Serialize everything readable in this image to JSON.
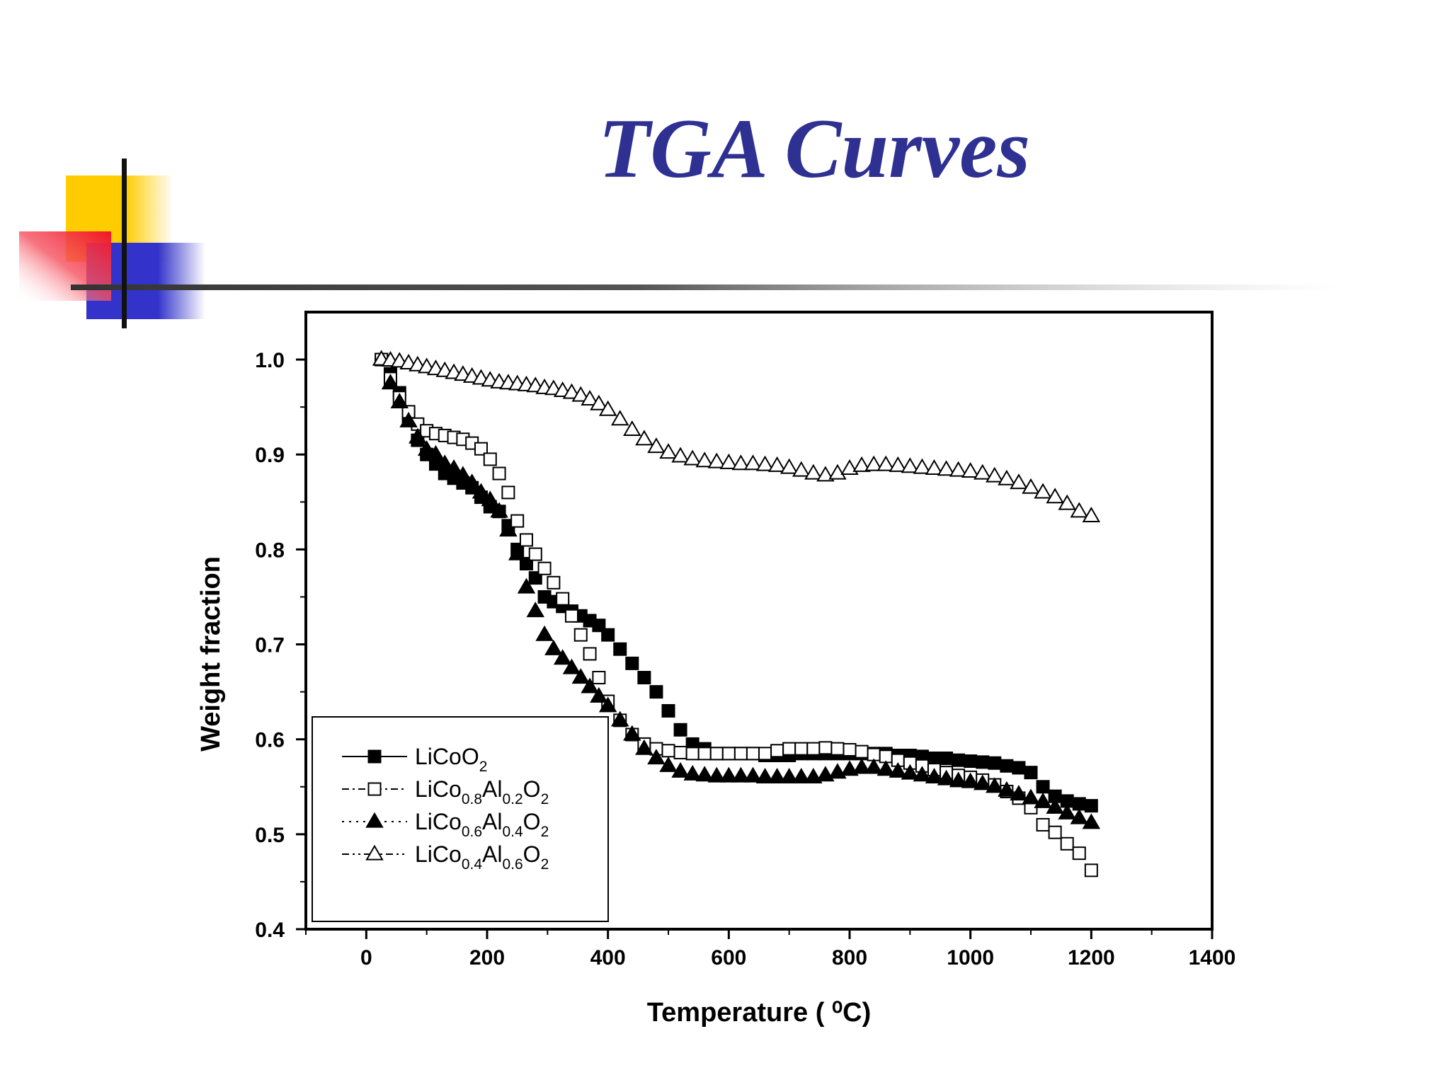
{
  "slide": {
    "title": "TGA Curves",
    "title_color": "#2E3192",
    "decor_colors": {
      "yellow": "#FFCC00",
      "red": "#F0142A",
      "blue": "#3333CC",
      "line": "#333333"
    }
  },
  "chart_data": {
    "type": "scatter",
    "title": "",
    "xlabel": "Temperature ( ⁰C)",
    "ylabel": "Weight fraction",
    "xlim": [
      -100,
      1400
    ],
    "ylim": [
      0.4,
      1.05
    ],
    "x_ticks": [
      "0",
      "200",
      "400",
      "600",
      "800",
      "1000",
      "1200",
      "1400"
    ],
    "y_ticks": [
      "0.4",
      "0.5",
      "0.6",
      "0.7",
      "0.8",
      "0.9",
      "1.0"
    ],
    "grid": false,
    "legend_position": "bottom-left",
    "legend": [
      {
        "parts": [
          [
            "LiCoO",
            ""
          ],
          [
            "2",
            "sub"
          ]
        ],
        "marker": "square-filled",
        "line": "solid"
      },
      {
        "parts": [
          [
            "LiCo",
            ""
          ],
          [
            "0.8",
            "sub"
          ],
          [
            "Al",
            ""
          ],
          [
            "0.2",
            "sub"
          ],
          [
            "O",
            ""
          ],
          [
            "2",
            "sub"
          ]
        ],
        "marker": "square-open",
        "line": "dash-dot"
      },
      {
        "parts": [
          [
            "LiCo",
            ""
          ],
          [
            "0.6",
            "sub"
          ],
          [
            "Al",
            ""
          ],
          [
            "0.4",
            "sub"
          ],
          [
            "O",
            ""
          ],
          [
            "2",
            "sub"
          ]
        ],
        "marker": "triangle-filled",
        "line": "dotted"
      },
      {
        "parts": [
          [
            "LiCo",
            ""
          ],
          [
            "0.4",
            "sub"
          ],
          [
            "Al",
            ""
          ],
          [
            "0.6",
            "sub"
          ],
          [
            "O",
            ""
          ],
          [
            "2",
            "sub"
          ]
        ],
        "marker": "triangle-open",
        "line": "dash-dot-dot"
      }
    ],
    "series": [
      {
        "marker": "square-filled",
        "x": [
          25,
          40,
          55,
          70,
          85,
          100,
          115,
          130,
          145,
          160,
          175,
          190,
          205,
          220,
          235,
          250,
          265,
          280,
          295,
          310,
          325,
          340,
          355,
          370,
          385,
          400,
          420,
          440,
          460,
          480,
          500,
          520,
          540,
          560,
          580,
          600,
          620,
          640,
          660,
          680,
          700,
          720,
          740,
          760,
          780,
          800,
          820,
          840,
          860,
          880,
          900,
          920,
          940,
          960,
          980,
          1000,
          1020,
          1040,
          1060,
          1080,
          1100,
          1120,
          1140,
          1160,
          1180,
          1200
        ],
        "y": [
          1.0,
          0.985,
          0.965,
          0.94,
          0.915,
          0.9,
          0.89,
          0.88,
          0.875,
          0.87,
          0.865,
          0.855,
          0.845,
          0.84,
          0.825,
          0.8,
          0.785,
          0.77,
          0.75,
          0.745,
          0.74,
          0.735,
          0.73,
          0.725,
          0.72,
          0.71,
          0.695,
          0.68,
          0.665,
          0.65,
          0.63,
          0.61,
          0.595,
          0.59,
          0.585,
          0.585,
          0.585,
          0.585,
          0.583,
          0.583,
          0.583,
          0.585,
          0.585,
          0.585,
          0.585,
          0.585,
          0.585,
          0.585,
          0.585,
          0.583,
          0.583,
          0.582,
          0.58,
          0.58,
          0.578,
          0.577,
          0.576,
          0.575,
          0.572,
          0.57,
          0.565,
          0.55,
          0.54,
          0.535,
          0.532,
          0.53
        ]
      },
      {
        "marker": "square-open",
        "x": [
          25,
          40,
          55,
          70,
          85,
          100,
          115,
          130,
          145,
          160,
          175,
          190,
          205,
          220,
          235,
          250,
          265,
          280,
          295,
          310,
          325,
          340,
          355,
          370,
          385,
          400,
          420,
          440,
          460,
          480,
          500,
          520,
          540,
          560,
          580,
          600,
          620,
          640,
          660,
          680,
          700,
          720,
          740,
          760,
          780,
          800,
          820,
          840,
          860,
          880,
          900,
          920,
          940,
          960,
          980,
          1000,
          1020,
          1040,
          1060,
          1080,
          1100,
          1120,
          1140,
          1160,
          1180,
          1200
        ],
        "y": [
          1.0,
          0.98,
          0.96,
          0.945,
          0.932,
          0.925,
          0.922,
          0.92,
          0.918,
          0.916,
          0.912,
          0.906,
          0.895,
          0.88,
          0.86,
          0.83,
          0.81,
          0.795,
          0.78,
          0.765,
          0.748,
          0.73,
          0.71,
          0.69,
          0.665,
          0.64,
          0.62,
          0.605,
          0.595,
          0.59,
          0.588,
          0.586,
          0.585,
          0.585,
          0.585,
          0.585,
          0.585,
          0.585,
          0.585,
          0.588,
          0.59,
          0.59,
          0.59,
          0.591,
          0.59,
          0.589,
          0.587,
          0.584,
          0.582,
          0.578,
          0.575,
          0.572,
          0.568,
          0.565,
          0.562,
          0.56,
          0.557,
          0.552,
          0.545,
          0.538,
          0.528,
          0.51,
          0.502,
          0.49,
          0.48,
          0.462
        ]
      },
      {
        "marker": "triangle-filled",
        "x": [
          25,
          40,
          55,
          70,
          85,
          100,
          115,
          130,
          145,
          160,
          175,
          190,
          205,
          220,
          235,
          250,
          265,
          280,
          295,
          310,
          325,
          340,
          355,
          370,
          385,
          400,
          420,
          440,
          460,
          480,
          500,
          520,
          540,
          560,
          580,
          600,
          620,
          640,
          660,
          680,
          700,
          720,
          740,
          760,
          780,
          800,
          820,
          840,
          860,
          880,
          900,
          920,
          940,
          960,
          980,
          1000,
          1020,
          1040,
          1060,
          1080,
          1100,
          1120,
          1140,
          1160,
          1180,
          1200
        ],
        "y": [
          1.0,
          0.975,
          0.955,
          0.935,
          0.918,
          0.905,
          0.9,
          0.89,
          0.885,
          0.878,
          0.87,
          0.86,
          0.852,
          0.84,
          0.82,
          0.795,
          0.76,
          0.735,
          0.71,
          0.695,
          0.685,
          0.675,
          0.665,
          0.655,
          0.645,
          0.635,
          0.62,
          0.605,
          0.59,
          0.58,
          0.572,
          0.566,
          0.563,
          0.562,
          0.561,
          0.561,
          0.561,
          0.561,
          0.56,
          0.56,
          0.56,
          0.56,
          0.56,
          0.562,
          0.565,
          0.568,
          0.57,
          0.57,
          0.568,
          0.566,
          0.564,
          0.562,
          0.56,
          0.558,
          0.556,
          0.555,
          0.553,
          0.55,
          0.546,
          0.542,
          0.538,
          0.534,
          0.528,
          0.522,
          0.517,
          0.512
        ]
      },
      {
        "marker": "triangle-open",
        "x": [
          25,
          40,
          55,
          70,
          85,
          100,
          115,
          130,
          145,
          160,
          175,
          190,
          205,
          220,
          235,
          250,
          265,
          280,
          295,
          310,
          325,
          340,
          355,
          370,
          385,
          400,
          420,
          440,
          460,
          480,
          500,
          520,
          540,
          560,
          580,
          600,
          620,
          640,
          660,
          680,
          700,
          720,
          740,
          760,
          780,
          800,
          820,
          840,
          860,
          880,
          900,
          920,
          940,
          960,
          980,
          1000,
          1020,
          1040,
          1060,
          1080,
          1100,
          1120,
          1140,
          1160,
          1180,
          1200
        ],
        "y": [
          1.0,
          0.999,
          0.998,
          0.996,
          0.994,
          0.992,
          0.99,
          0.988,
          0.986,
          0.984,
          0.982,
          0.98,
          0.978,
          0.976,
          0.975,
          0.974,
          0.973,
          0.972,
          0.97,
          0.969,
          0.967,
          0.965,
          0.962,
          0.958,
          0.953,
          0.947,
          0.937,
          0.926,
          0.916,
          0.908,
          0.902,
          0.898,
          0.895,
          0.893,
          0.892,
          0.891,
          0.89,
          0.89,
          0.889,
          0.888,
          0.886,
          0.883,
          0.88,
          0.878,
          0.88,
          0.885,
          0.888,
          0.889,
          0.889,
          0.888,
          0.887,
          0.886,
          0.885,
          0.884,
          0.883,
          0.882,
          0.88,
          0.877,
          0.874,
          0.87,
          0.865,
          0.86,
          0.855,
          0.848,
          0.84,
          0.835
        ]
      }
    ]
  }
}
